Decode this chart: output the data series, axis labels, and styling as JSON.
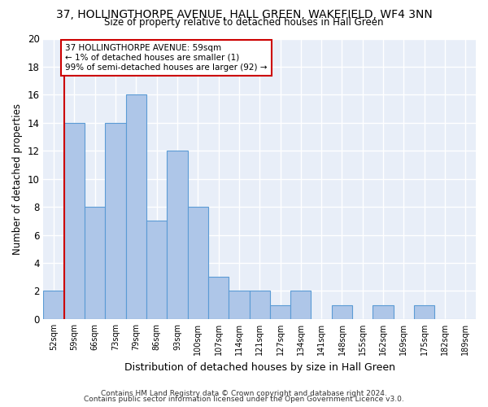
{
  "title": "37, HOLLINGTHORPE AVENUE, HALL GREEN, WAKEFIELD, WF4 3NN",
  "subtitle": "Size of property relative to detached houses in Hall Green",
  "xlabel": "Distribution of detached houses by size in Hall Green",
  "ylabel": "Number of detached properties",
  "bar_labels": [
    "52sqm",
    "59sqm",
    "66sqm",
    "73sqm",
    "79sqm",
    "86sqm",
    "93sqm",
    "100sqm",
    "107sqm",
    "114sqm",
    "121sqm",
    "127sqm",
    "134sqm",
    "141sqm",
    "148sqm",
    "155sqm",
    "162sqm",
    "169sqm",
    "175sqm",
    "182sqm",
    "189sqm"
  ],
  "bar_values": [
    2,
    14,
    8,
    14,
    16,
    7,
    12,
    8,
    3,
    2,
    2,
    1,
    2,
    0,
    1,
    0,
    1,
    0,
    1,
    0,
    0
  ],
  "bar_color": "#aec6e8",
  "bar_edge_color": "#5b9bd5",
  "red_line_index": 1,
  "red_line_color": "#cc0000",
  "annotation_line1": "37 HOLLINGTHORPE AVENUE: 59sqm",
  "annotation_line2": "← 1% of detached houses are smaller (1)",
  "annotation_line3": "99% of semi-detached houses are larger (92) →",
  "annotation_box_edge": "#cc0000",
  "annotation_box_face": "#ffffff",
  "ylim": [
    0,
    20
  ],
  "yticks": [
    0,
    2,
    4,
    6,
    8,
    10,
    12,
    14,
    16,
    18,
    20
  ],
  "background_color": "#e8eef8",
  "grid_color": "#ffffff",
  "footer_line1": "Contains HM Land Registry data © Crown copyright and database right 2024.",
  "footer_line2": "Contains public sector information licensed under the Open Government Licence v3.0."
}
